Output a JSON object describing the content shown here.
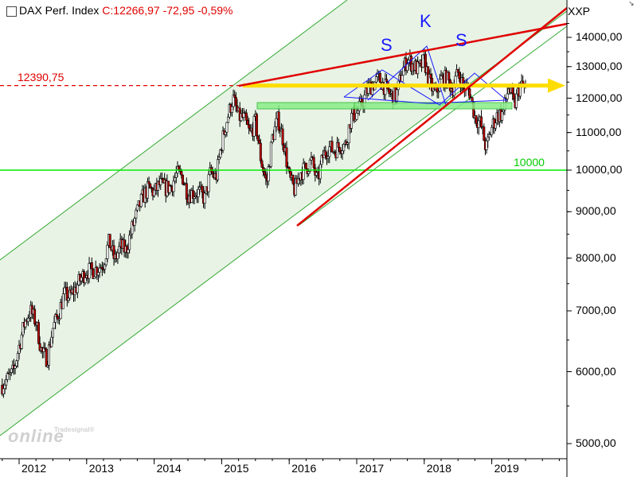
{
  "header": {
    "index_name": "DAX Perf. Index",
    "quote": "C:12266,97 -72,95 -0,59%"
  },
  "symbol": "XXP",
  "watermark": {
    "brand_small": "Tradesignal®",
    "brand": "online"
  },
  "colors": {
    "up": "#ffffff",
    "down": "#c00000",
    "wick": "#000000",
    "channel_fill": "#e8f3e5",
    "channel_line": "#33aa33",
    "red": "#e00000",
    "green": "#00ee00",
    "yellow": "#ffdd00",
    "pattern": "#1a1aff"
  },
  "chart_data": {
    "type": "candlestick",
    "title": "DAX Perf. Index",
    "y_scale": "log",
    "ylim": [
      4950,
      15200
    ],
    "y_ticks": [
      "14000,00",
      "13000,00",
      "12000,00",
      "11000,00",
      "10000,00",
      "9000,00",
      "8000,00",
      "7000,00",
      "6000,00",
      "5000,00"
    ],
    "x_ticks": [
      "2012",
      "2013",
      "2014",
      "2015",
      "2016",
      "2017",
      "2018",
      "2019"
    ],
    "xlim": [
      "2011-10",
      "2020-06"
    ],
    "last_close": 12266.97,
    "series": [
      {
        "values_monthly_approx": [
          [
            "2011-10",
            5800
          ],
          [
            "2011-11",
            5900
          ],
          [
            "2011-12",
            6000
          ],
          [
            "2012-01",
            6400
          ],
          [
            "2012-02",
            6800
          ],
          [
            "2012-03",
            7000
          ],
          [
            "2012-04",
            6800
          ],
          [
            "2012-05",
            6300
          ],
          [
            "2012-06",
            6200
          ],
          [
            "2012-07",
            6700
          ],
          [
            "2012-08",
            6950
          ],
          [
            "2012-09",
            7300
          ],
          [
            "2012-10",
            7250
          ],
          [
            "2012-11",
            7400
          ],
          [
            "2012-12",
            7600
          ],
          [
            "2013-01",
            7750
          ],
          [
            "2013-02",
            7750
          ],
          [
            "2013-03",
            7800
          ],
          [
            "2013-04",
            7900
          ],
          [
            "2013-05",
            8350
          ],
          [
            "2013-06",
            7950
          ],
          [
            "2013-07",
            8250
          ],
          [
            "2013-08",
            8150
          ],
          [
            "2013-09",
            8600
          ],
          [
            "2013-10",
            9000
          ],
          [
            "2013-11",
            9350
          ],
          [
            "2013-12",
            9550
          ],
          [
            "2014-01",
            9450
          ],
          [
            "2014-02",
            9650
          ],
          [
            "2014-03",
            9550
          ],
          [
            "2014-04",
            9600
          ],
          [
            "2014-05",
            9900
          ],
          [
            "2014-06",
            9850
          ],
          [
            "2014-07",
            9400
          ],
          [
            "2014-08",
            9450
          ],
          [
            "2014-09",
            9450
          ],
          [
            "2014-10",
            9300
          ],
          [
            "2014-11",
            9950
          ],
          [
            "2014-12",
            9800
          ],
          [
            "2015-01",
            10700
          ],
          [
            "2015-02",
            11400
          ],
          [
            "2015-03",
            12000
          ],
          [
            "2015-04",
            11450
          ],
          [
            "2015-05",
            11400
          ],
          [
            "2015-06",
            10950
          ],
          [
            "2015-07",
            11300
          ],
          [
            "2015-08",
            10250
          ],
          [
            "2015-09",
            9650
          ],
          [
            "2015-10",
            10850
          ],
          [
            "2015-11",
            11400
          ],
          [
            "2015-12",
            10750
          ],
          [
            "2016-01",
            9800
          ],
          [
            "2016-02",
            9500
          ],
          [
            "2016-03",
            9950
          ],
          [
            "2016-04",
            10050
          ],
          [
            "2016-05",
            10250
          ],
          [
            "2016-06",
            9700
          ],
          [
            "2016-07",
            10350
          ],
          [
            "2016-08",
            10600
          ],
          [
            "2016-09",
            10500
          ],
          [
            "2016-10",
            10650
          ],
          [
            "2016-11",
            10650
          ],
          [
            "2016-12",
            11450
          ],
          [
            "2017-01",
            11550
          ],
          [
            "2017-02",
            11850
          ],
          [
            "2017-03",
            12300
          ],
          [
            "2017-04",
            12450
          ],
          [
            "2017-05",
            12600
          ],
          [
            "2017-06",
            12350
          ],
          [
            "2017-07",
            12100
          ],
          [
            "2017-08",
            12050
          ],
          [
            "2017-09",
            12800
          ],
          [
            "2017-10",
            13250
          ],
          [
            "2017-11",
            13050
          ],
          [
            "2017-12",
            12900
          ],
          [
            "2018-01",
            13200
          ],
          [
            "2018-02",
            12450
          ],
          [
            "2018-03",
            12100
          ],
          [
            "2018-04",
            12600
          ],
          [
            "2018-05",
            12600
          ],
          [
            "2018-06",
            12300
          ],
          [
            "2018-07",
            12800
          ],
          [
            "2018-08",
            12350
          ],
          [
            "2018-09",
            12250
          ],
          [
            "2018-10",
            11450
          ],
          [
            "2018-11",
            11250
          ],
          [
            "2018-12",
            10550
          ],
          [
            "2019-01",
            11150
          ],
          [
            "2019-02",
            11500
          ],
          [
            "2019-03",
            11550
          ],
          [
            "2019-04",
            12350
          ],
          [
            "2019-05",
            11750
          ],
          [
            "2019-06",
            12400
          ],
          [
            "2019-07",
            12270
          ]
        ]
      }
    ],
    "annotations": [
      {
        "kind": "hline",
        "label": "12390,75",
        "y": 12390.75,
        "style": "dashed",
        "color": "red"
      },
      {
        "kind": "hline",
        "label": "10000",
        "y": 10000,
        "color": "green"
      },
      {
        "kind": "pattern",
        "labels": [
          "S",
          "K",
          "S"
        ]
      },
      {
        "kind": "arrow",
        "y": 12390.75,
        "color": "yellow"
      }
    ]
  }
}
